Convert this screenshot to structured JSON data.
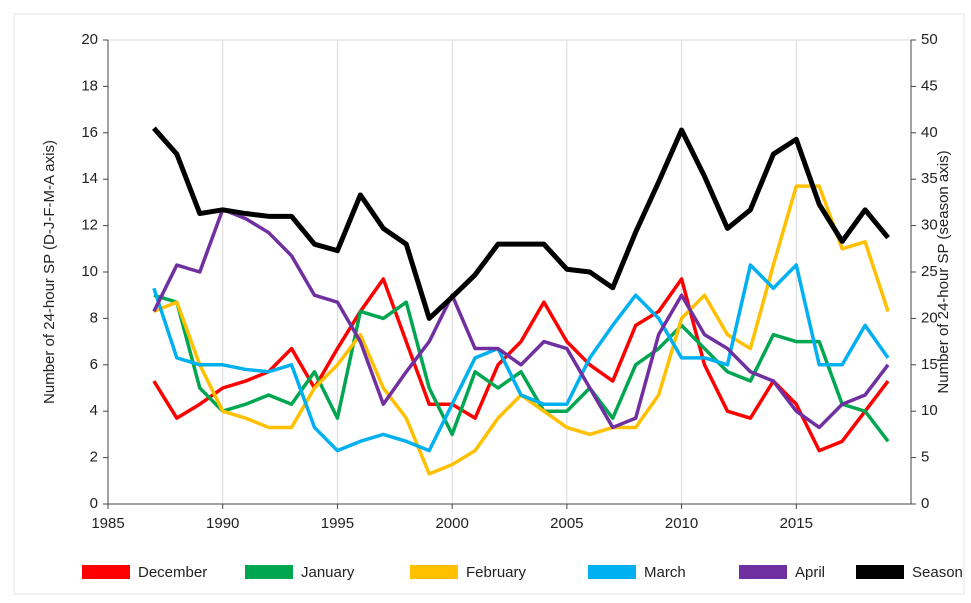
{
  "chart_data": {
    "type": "line",
    "y_label": "Number of 24-hour SP (D-J-F-M-A axis)",
    "y2_label": "Number of 24-hour SP (season axis)",
    "x": [
      1987,
      1988,
      1989,
      1990,
      1991,
      1992,
      1993,
      1994,
      1995,
      1996,
      1997,
      1998,
      1999,
      2000,
      2001,
      2002,
      2003,
      2004,
      2005,
      2006,
      2007,
      2008,
      2009,
      2010,
      2011,
      2012,
      2013,
      2014,
      2015,
      2016,
      2017,
      2018,
      2019
    ],
    "series": [
      {
        "name": "December",
        "color": "#ff0000",
        "values": [
          5.3,
          3.7,
          4.3,
          5,
          5.3,
          5.7,
          6.7,
          5,
          6.7,
          8.3,
          9.7,
          7,
          4.3,
          4.3,
          3.7,
          6,
          7,
          8.7,
          7,
          6,
          5.3,
          7.7,
          8.3,
          9.7,
          6,
          4,
          3.7,
          5.3,
          4.3,
          2.3,
          2.7,
          4,
          5.3
        ]
      },
      {
        "name": "January",
        "color": "#00a650",
        "values": [
          9,
          8.7,
          5,
          4,
          4.3,
          4.7,
          4.3,
          5.7,
          3.7,
          8.3,
          8,
          8.7,
          5,
          3,
          5.7,
          5,
          5.7,
          4,
          4,
          5,
          3.7,
          6,
          6.7,
          7.7,
          6.7,
          5.7,
          5.3,
          7.3,
          7,
          7,
          4.3,
          4,
          2.7
        ]
      },
      {
        "name": "February",
        "color": "#ffc000",
        "values": [
          8.3,
          8.7,
          6,
          4,
          3.7,
          3.3,
          3.3,
          5,
          6,
          7.3,
          5,
          3.7,
          1.3,
          1.7,
          2.3,
          3.7,
          4.7,
          4,
          3.3,
          3,
          3.3,
          3.3,
          4.7,
          8,
          9,
          7.3,
          6.7,
          10.3,
          13.7,
          13.7,
          11,
          11.3,
          8.3
        ]
      },
      {
        "name": "March",
        "color": "#00b0f0",
        "values": [
          9.3,
          6.3,
          6,
          6,
          5.8,
          5.7,
          6,
          3.3,
          2.3,
          2.7,
          3,
          2.7,
          2.3,
          4.3,
          6.3,
          6.7,
          4.7,
          4.3,
          4.3,
          6.3,
          7.7,
          9,
          8,
          6.3,
          6.3,
          6,
          10.3,
          9.3,
          10.3,
          6,
          6,
          7.7,
          6.3
        ]
      },
      {
        "name": "April",
        "color": "#7030a0",
        "values": [
          8.3,
          10.3,
          10,
          12.7,
          12.3,
          11.7,
          10.7,
          9,
          8.7,
          7,
          4.3,
          5.7,
          7,
          9,
          6.7,
          6.7,
          6,
          7,
          6.7,
          5,
          3.3,
          3.7,
          7.3,
          9,
          7.3,
          6.7,
          5.7,
          5.3,
          4,
          3.3,
          4.3,
          4.7,
          6
        ]
      },
      {
        "name": "Season",
        "color": "#000000",
        "axis": "y2",
        "values": [
          40.5,
          37.7,
          31.3,
          31.7,
          31.3,
          31,
          31,
          28,
          27.3,
          33.3,
          29.7,
          28,
          20,
          22.3,
          24.7,
          28,
          28,
          28,
          25.3,
          25,
          23.3,
          29.3,
          34.7,
          40.3,
          35.3,
          29.7,
          31.7,
          37.7,
          39.3,
          32.3,
          28.3,
          31.7,
          28.7
        ]
      }
    ],
    "xlim": [
      1985,
      2020
    ],
    "xticks": [
      1985,
      1990,
      1995,
      2000,
      2005,
      2010,
      2015
    ],
    "ylim": [
      0,
      20
    ],
    "yticks": [
      0,
      2,
      4,
      6,
      8,
      10,
      12,
      14,
      16,
      18,
      20
    ],
    "y2lim": [
      0,
      50
    ],
    "y2ticks": [
      0,
      5,
      10,
      15,
      20,
      25,
      30,
      35,
      40,
      45,
      50
    ],
    "legend": "bottom",
    "grid": "x"
  }
}
